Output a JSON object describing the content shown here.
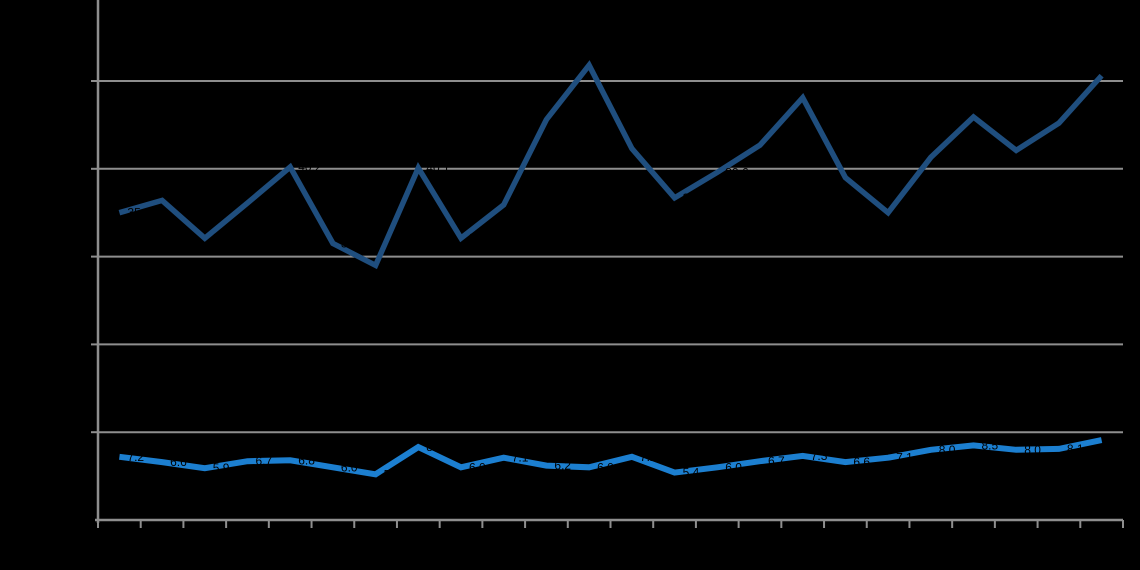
{
  "canvas": {
    "background": "#000000"
  },
  "chart_data": {
    "type": "line",
    "title": "",
    "xlabel": "",
    "ylabel": "",
    "x_count": 24,
    "ylim": [
      0,
      59.2
    ],
    "gridline_values": [
      10,
      20,
      30,
      40,
      50
    ],
    "grid_on": true,
    "legend": "none",
    "grid_color": "#8E8E8E",
    "axis_color": "#8E8E8E",
    "tick_color": "#8E8E8E",
    "data_label_color": "#000000",
    "series": [
      {
        "name": "series-dark-navy",
        "color": "#1F4E7E",
        "stroke_width": 5.5,
        "values": [
          35.0,
          36.4,
          32.1,
          36.1,
          40.2,
          31.5,
          29.0,
          40.1,
          32.1,
          35.9,
          45.6,
          51.8,
          42.3,
          36.7,
          39.6,
          42.7,
          48.1,
          39.0,
          35.0,
          41.3,
          45.9,
          42.1,
          45.2,
          50.6
        ]
      },
      {
        "name": "series-bright-blue",
        "color": "#1C7FD0",
        "stroke_width": 6,
        "values": [
          7.2,
          6.6,
          5.9,
          6.7,
          6.8,
          6.0,
          5.2,
          8.3,
          6.0,
          7.1,
          6.2,
          6.0,
          7.2,
          5.4,
          6.0,
          6.7,
          7.3,
          6.6,
          7.1,
          8.0,
          8.5,
          8.0,
          8.1,
          9.1
        ]
      }
    ]
  }
}
